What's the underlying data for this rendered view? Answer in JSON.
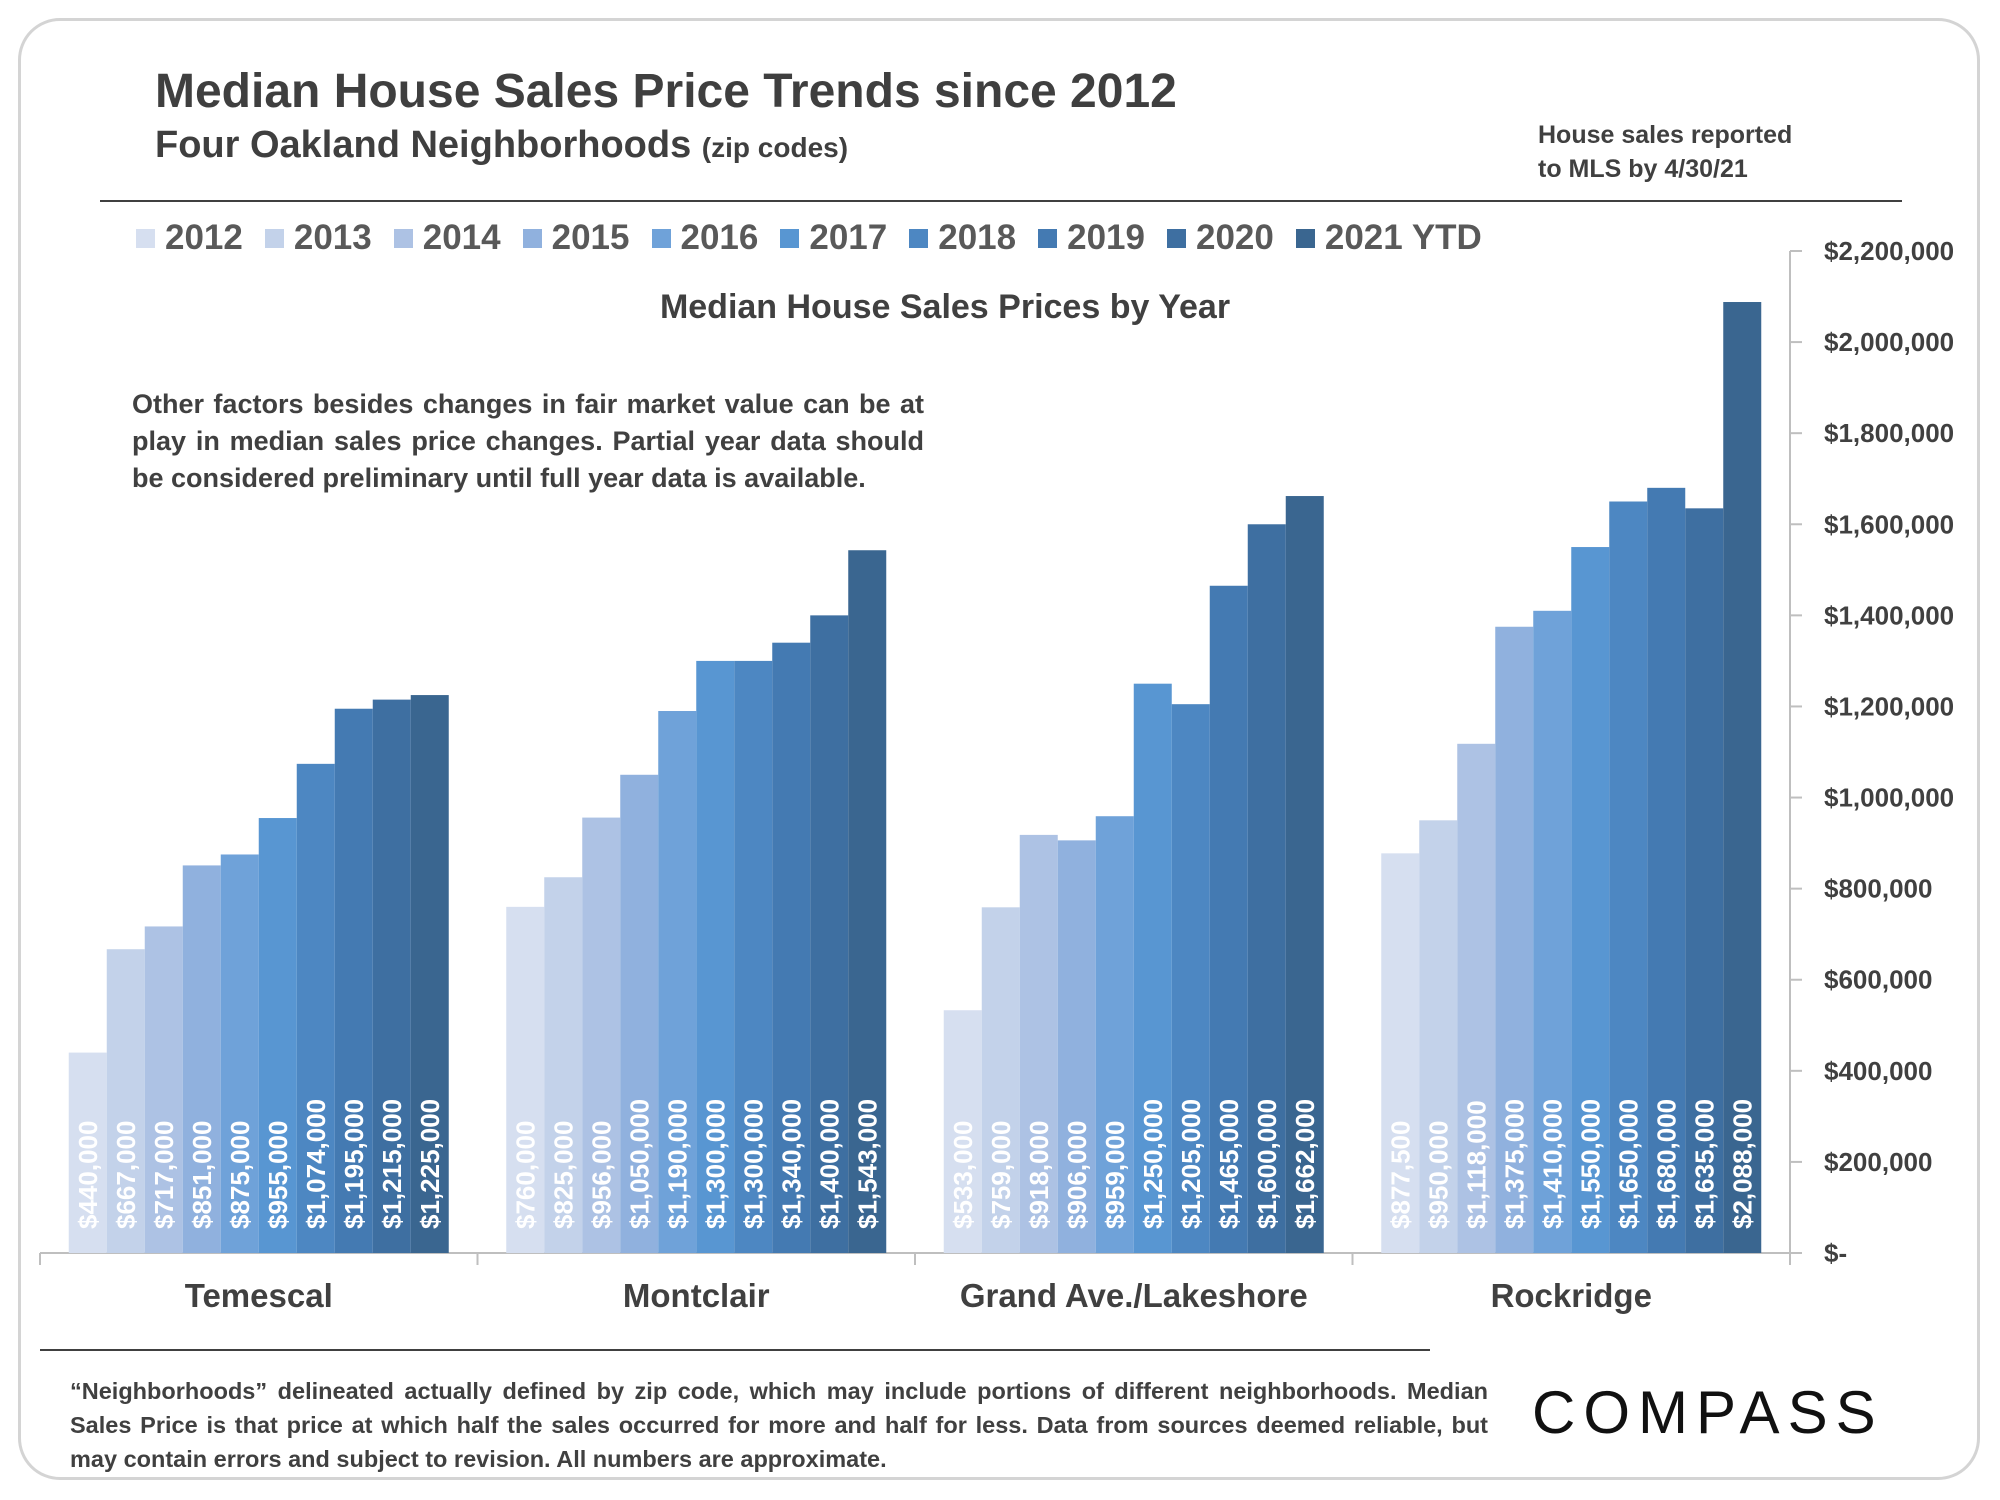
{
  "header": {
    "title": "Median House Sales Price Trends since 2012",
    "subtitle": "Four Oakland Neighborhoods",
    "subtitle_small": "(zip codes)",
    "note_line1": "House sales reported",
    "note_line2": "to MLS by 4/30/21"
  },
  "annotation": "Other factors besides changes in fair market value can be at play in median sales price changes. Partial year data should be considered preliminary until full year data is available.",
  "footnote": "“Neighborhoods” delineated actually defined by zip code, which may include portions of different neighborhoods. Median Sales Price is that price at which half the sales occurred for more and half for less. Data from sources deemed reliable, but may contain errors and subject to revision.  All numbers are approximate.",
  "logo": "COMPASS",
  "legend": [
    {
      "label": "2012",
      "color": "#d6dff0"
    },
    {
      "label": "2013",
      "color": "#c3d2ea"
    },
    {
      "label": "2014",
      "color": "#adc2e4"
    },
    {
      "label": "2015",
      "color": "#90b1de"
    },
    {
      "label": "2016",
      "color": "#6fa2d9"
    },
    {
      "label": "2017",
      "color": "#5896d2"
    },
    {
      "label": "2018",
      "color": "#4d87c2"
    },
    {
      "label": "2019",
      "color": "#447ab2"
    },
    {
      "label": "2020",
      "color": "#3e6fa1"
    },
    {
      "label": "2021 YTD",
      "color": "#3a6690"
    }
  ],
  "chart_data": {
    "type": "bar",
    "title": "Median House Sales Prices by Year",
    "categories": [
      "Temescal",
      "Montclair",
      "Grand Ave./Lakeshore",
      "Rockridge"
    ],
    "ylim": [
      0,
      2200000
    ],
    "y_ticks": [
      "$-",
      "$200,000",
      "$400,000",
      "$600,000",
      "$800,000",
      "$1,000,000",
      "$1,200,000",
      "$1,400,000",
      "$1,600,000",
      "$1,800,000",
      "$2,000,000",
      "$2,200,000"
    ],
    "y_axis_position": "right",
    "legend_position": "top",
    "series": [
      {
        "name": "2012",
        "values": [
          440000,
          760000,
          533000,
          877500
        ],
        "labels": [
          "$440,000",
          "$760,000",
          "$533,000",
          "$877,500"
        ]
      },
      {
        "name": "2013",
        "values": [
          667000,
          825000,
          759000,
          950000
        ],
        "labels": [
          "$667,000",
          "$825,000",
          "$759,000",
          "$950,000"
        ]
      },
      {
        "name": "2014",
        "values": [
          717000,
          956000,
          918000,
          1118000
        ],
        "labels": [
          "$717,000",
          "$956,000",
          "$918,000",
          "$1,118,000"
        ]
      },
      {
        "name": "2015",
        "values": [
          851000,
          1050000,
          906000,
          1375000
        ],
        "labels": [
          "$851,000",
          "$1,050,000",
          "$906,000",
          "$1,375,000"
        ]
      },
      {
        "name": "2016",
        "values": [
          875000,
          1190000,
          959000,
          1410000
        ],
        "labels": [
          "$875,000",
          "$1,190,000",
          "$959,000",
          "$1,410,000"
        ]
      },
      {
        "name": "2017",
        "values": [
          955000,
          1300000,
          1250000,
          1550000
        ],
        "labels": [
          "$955,000",
          "$1,300,000",
          "$1,250,000",
          "$1,550,000"
        ]
      },
      {
        "name": "2018",
        "values": [
          1074000,
          1300000,
          1205000,
          1650000
        ],
        "labels": [
          "$1,074,000",
          "$1,300,000",
          "$1,205,000",
          "$1,650,000"
        ]
      },
      {
        "name": "2019",
        "values": [
          1195000,
          1340000,
          1465000,
          1680000
        ],
        "labels": [
          "$1,195,000",
          "$1,340,000",
          "$1,465,000",
          "$1,680,000"
        ]
      },
      {
        "name": "2020",
        "values": [
          1215000,
          1400000,
          1600000,
          1635000
        ],
        "labels": [
          "$1,215,000",
          "$1,400,000",
          "$1,600,000",
          "$1,635,000"
        ]
      },
      {
        "name": "2021 YTD",
        "values": [
          1225000,
          1543000,
          1662000,
          2088000
        ],
        "labels": [
          "$1,225,000",
          "$1,543,000",
          "$1,662,000",
          "$2,088,000"
        ]
      }
    ]
  }
}
